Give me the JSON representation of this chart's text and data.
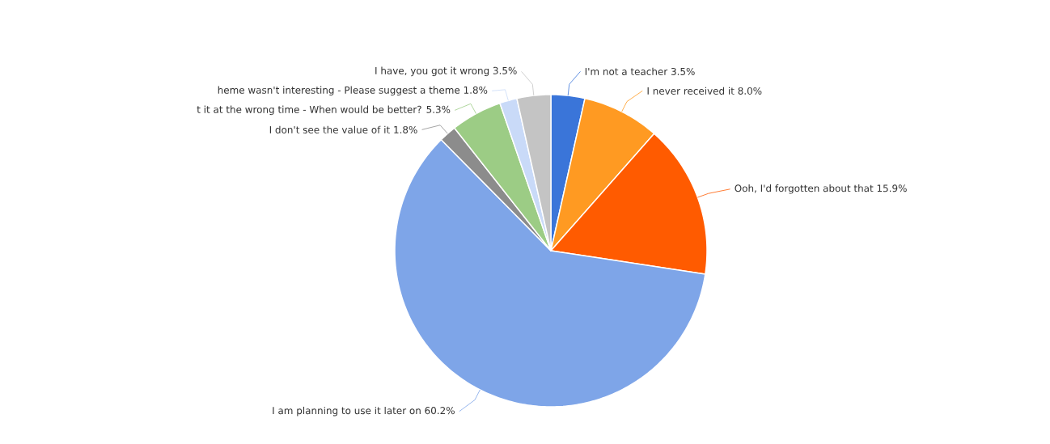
{
  "chart_data": {
    "type": "pie",
    "categories": [
      "I'm not a teacher",
      "I never received it",
      "Ooh, I'd forgotten about that",
      "I am planning to use it later on",
      "I don't see the value of it",
      "t it at the wrong time - When would be better?",
      "heme wasn't interesting - Please suggest a theme",
      "I have, you got it wrong"
    ],
    "values": [
      3.5,
      8.0,
      15.9,
      60.2,
      1.8,
      5.3,
      1.8,
      3.5
    ],
    "value_labels": [
      "3.5%",
      "8.0%",
      "15.9%",
      "60.2%",
      "1.8%",
      "5.3%",
      "1.8%",
      "3.5%"
    ],
    "colors": [
      "#3a75d9",
      "#ff9a22",
      "#ff5b00",
      "#7ea5e8",
      "#8c8c8c",
      "#9ccc85",
      "#c9daf8",
      "#c4c4c4"
    ]
  }
}
